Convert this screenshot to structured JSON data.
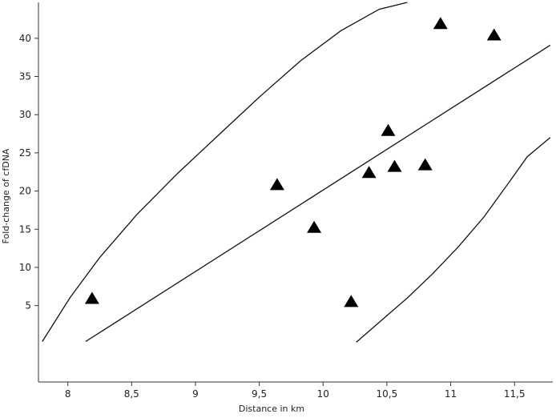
{
  "chart_data": {
    "type": "scatter",
    "title": "",
    "xlabel": "Distance in km",
    "ylabel": "Fold-change of cfDNA",
    "xlim": [
      7.77,
      11.8
    ],
    "ylim": [
      -5,
      44.7
    ],
    "xticks": [
      8,
      8.5,
      9,
      9.5,
      10,
      10.5,
      11,
      11.5
    ],
    "xtick_labels": [
      "8",
      "8,5",
      "9",
      "9,5",
      "10",
      "10,5",
      "11",
      "11,5"
    ],
    "yticks": [
      5,
      10,
      15,
      20,
      25,
      30,
      35,
      40
    ],
    "ytick_labels": [
      "5",
      "10",
      "15",
      "20",
      "25",
      "30",
      "35",
      "40"
    ],
    "grid": false,
    "marker": "triangle",
    "points": [
      {
        "x": 8.19,
        "y": 5.9
      },
      {
        "x": 9.64,
        "y": 20.8
      },
      {
        "x": 9.93,
        "y": 15.2
      },
      {
        "x": 10.22,
        "y": 5.5
      },
      {
        "x": 10.36,
        "y": 22.4
      },
      {
        "x": 10.51,
        "y": 27.9
      },
      {
        "x": 10.56,
        "y": 23.2
      },
      {
        "x": 10.8,
        "y": 23.4
      },
      {
        "x": 10.92,
        "y": 41.9
      },
      {
        "x": 11.34,
        "y": 40.4
      }
    ],
    "lines": [
      {
        "role": "fit",
        "x": [
          8.14,
          11.78
        ],
        "y": [
          0.3,
          39.1
        ]
      },
      {
        "role": "upper-band",
        "x": [
          7.8,
          8.02,
          8.25,
          8.54,
          8.86,
          9.18,
          9.5,
          9.82,
          10.14,
          10.44,
          10.66
        ],
        "y": [
          0.3,
          6.1,
          11.3,
          16.9,
          22.3,
          27.3,
          32.3,
          37.0,
          41.0,
          43.8,
          45.4
        ]
      },
      {
        "role": "lower-band",
        "x": [
          10.26,
          10.46,
          10.66,
          10.86,
          11.06,
          11.26,
          11.46,
          11.6,
          11.78
        ],
        "y": [
          0.2,
          3.1,
          6.0,
          9.2,
          12.7,
          16.6,
          21.2,
          24.5,
          27.0
        ]
      }
    ]
  }
}
